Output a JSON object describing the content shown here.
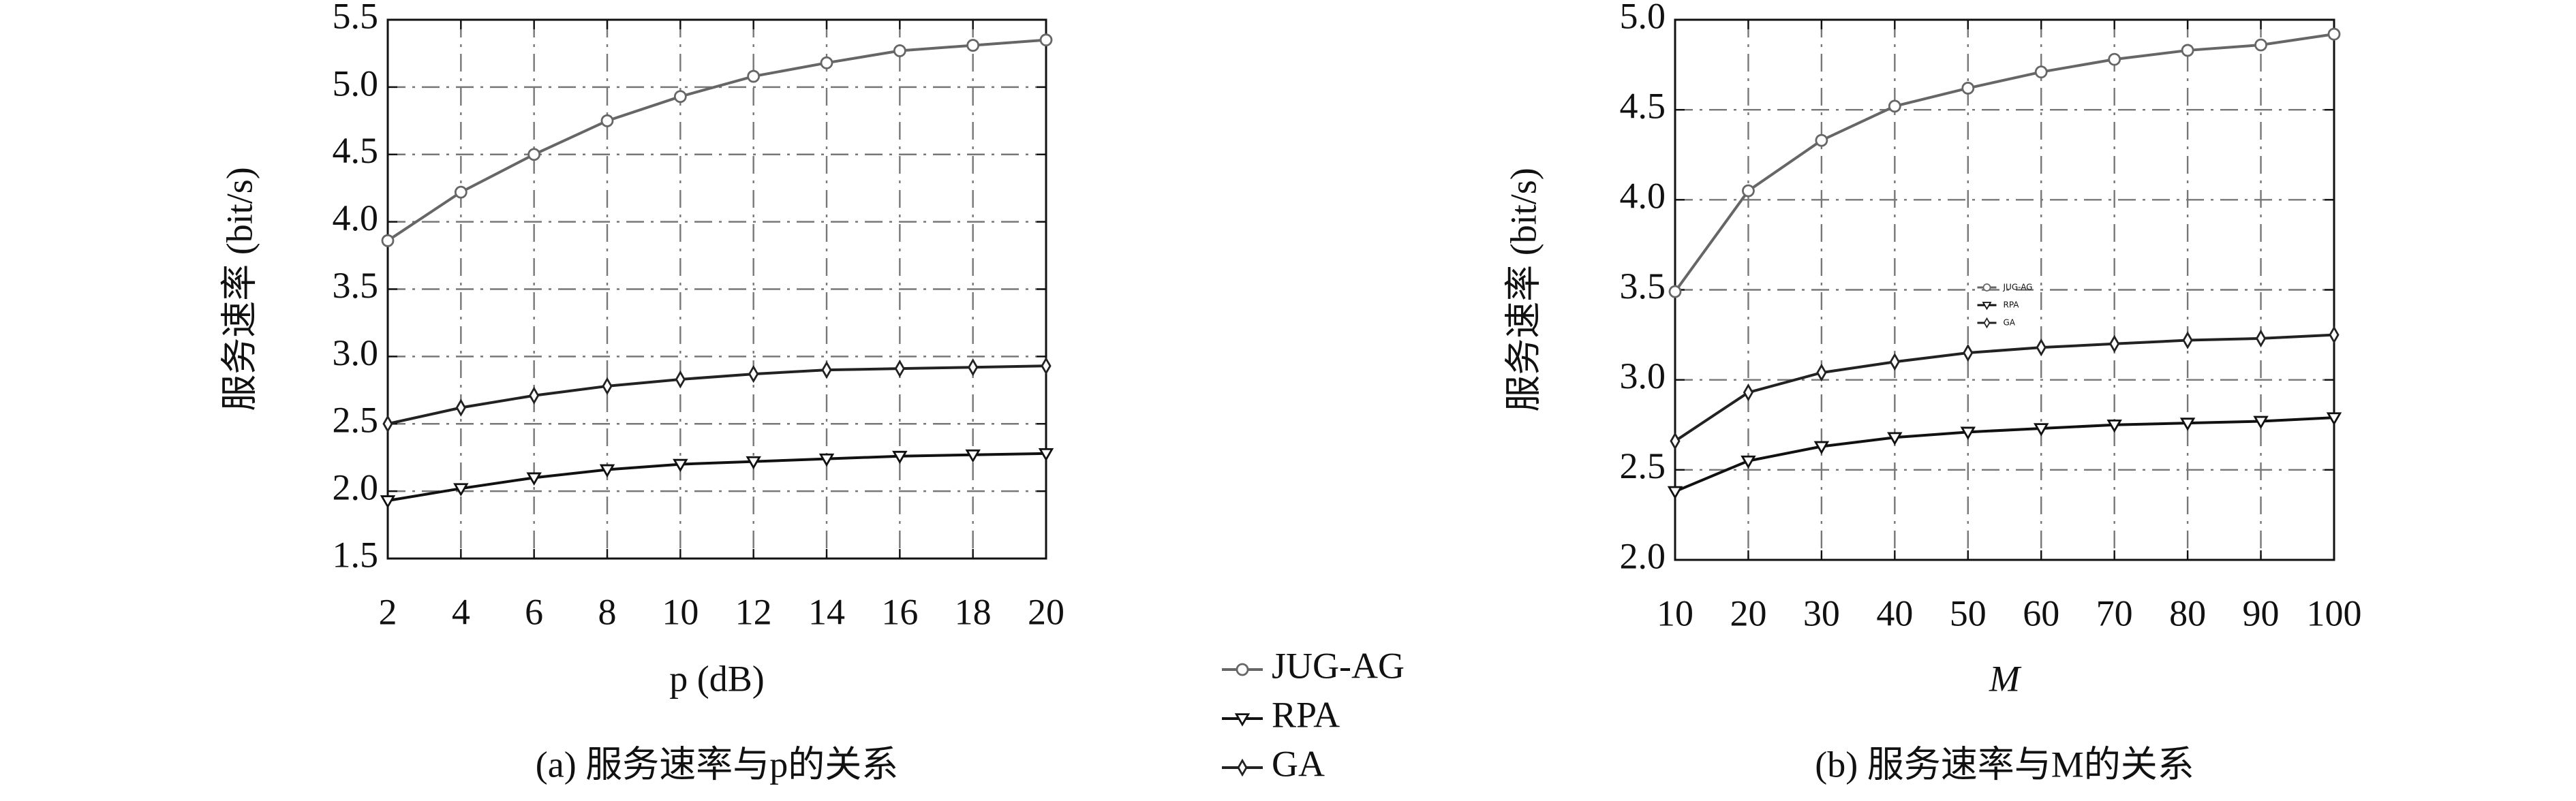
{
  "chart_data": [
    {
      "type": "line",
      "caption": "(a) 服务速率与p的关系",
      "xlabel": "p (dB)",
      "ylabel": "服务速率 (bit/s)",
      "x": [
        2,
        4,
        6,
        8,
        10,
        12,
        14,
        16,
        18,
        20
      ],
      "xlim": [
        2,
        20
      ],
      "xticks": [
        2,
        4,
        6,
        8,
        10,
        12,
        14,
        16,
        18,
        20
      ],
      "ylim": [
        1.5,
        5.5
      ],
      "yticks": [
        1.5,
        {
          "value": 2,
          "label": "2.0"
        },
        2.5,
        {
          "value": 3,
          "label": "3.0"
        },
        3.5,
        {
          "value": 4,
          "label": "4.0"
        },
        4.5,
        {
          "value": 5,
          "label": "5.0"
        },
        5.5
      ],
      "grid": true,
      "series": [
        {
          "name": "JUG-AG",
          "color": "#666666",
          "marker": "circle",
          "values": [
            3.86,
            4.22,
            4.5,
            4.75,
            4.93,
            5.08,
            5.18,
            5.27,
            5.31,
            5.35
          ]
        },
        {
          "name": "RPA",
          "color": "#111111",
          "marker": "triangle-down",
          "values": [
            1.93,
            2.02,
            2.1,
            2.16,
            2.2,
            2.22,
            2.24,
            2.26,
            2.27,
            2.28
          ]
        },
        {
          "name": "GA",
          "color": "#222222",
          "marker": "diamond",
          "values": [
            2.5,
            2.62,
            2.71,
            2.78,
            2.83,
            2.87,
            2.9,
            2.91,
            2.92,
            2.93
          ]
        }
      ]
    },
    {
      "type": "line",
      "caption": "(b) 服务速率与M的关系",
      "xlabel": "M",
      "ylabel": "服务速率 (bit/s)",
      "x": [
        10,
        20,
        30,
        40,
        50,
        60,
        70,
        80,
        90,
        100
      ],
      "xlim": [
        10,
        100
      ],
      "xticks": [
        10,
        20,
        30,
        40,
        50,
        60,
        70,
        80,
        90,
        100
      ],
      "ylim": [
        2,
        5
      ],
      "yticks": [
        {
          "value": 2,
          "label": "2.0"
        },
        2.5,
        {
          "value": 3,
          "label": "3.0"
        },
        3.5,
        {
          "value": 4,
          "label": "4.0"
        },
        4.5,
        {
          "value": 5,
          "label": "5.0"
        }
      ],
      "grid": true,
      "legend": "center",
      "series": [
        {
          "name": "JUG-AG",
          "color": "#666666",
          "marker": "circle",
          "values": [
            3.49,
            4.05,
            4.33,
            4.52,
            4.62,
            4.71,
            4.78,
            4.83,
            4.86,
            4.92
          ]
        },
        {
          "name": "RPA",
          "color": "#111111",
          "marker": "triangle-down",
          "values": [
            2.38,
            2.55,
            2.63,
            2.68,
            2.71,
            2.73,
            2.75,
            2.76,
            2.77,
            2.79
          ]
        },
        {
          "name": "GA",
          "color": "#222222",
          "marker": "diamond",
          "values": [
            2.66,
            2.93,
            3.04,
            3.1,
            3.15,
            3.18,
            3.2,
            3.22,
            3.23,
            3.25
          ]
        }
      ]
    }
  ]
}
